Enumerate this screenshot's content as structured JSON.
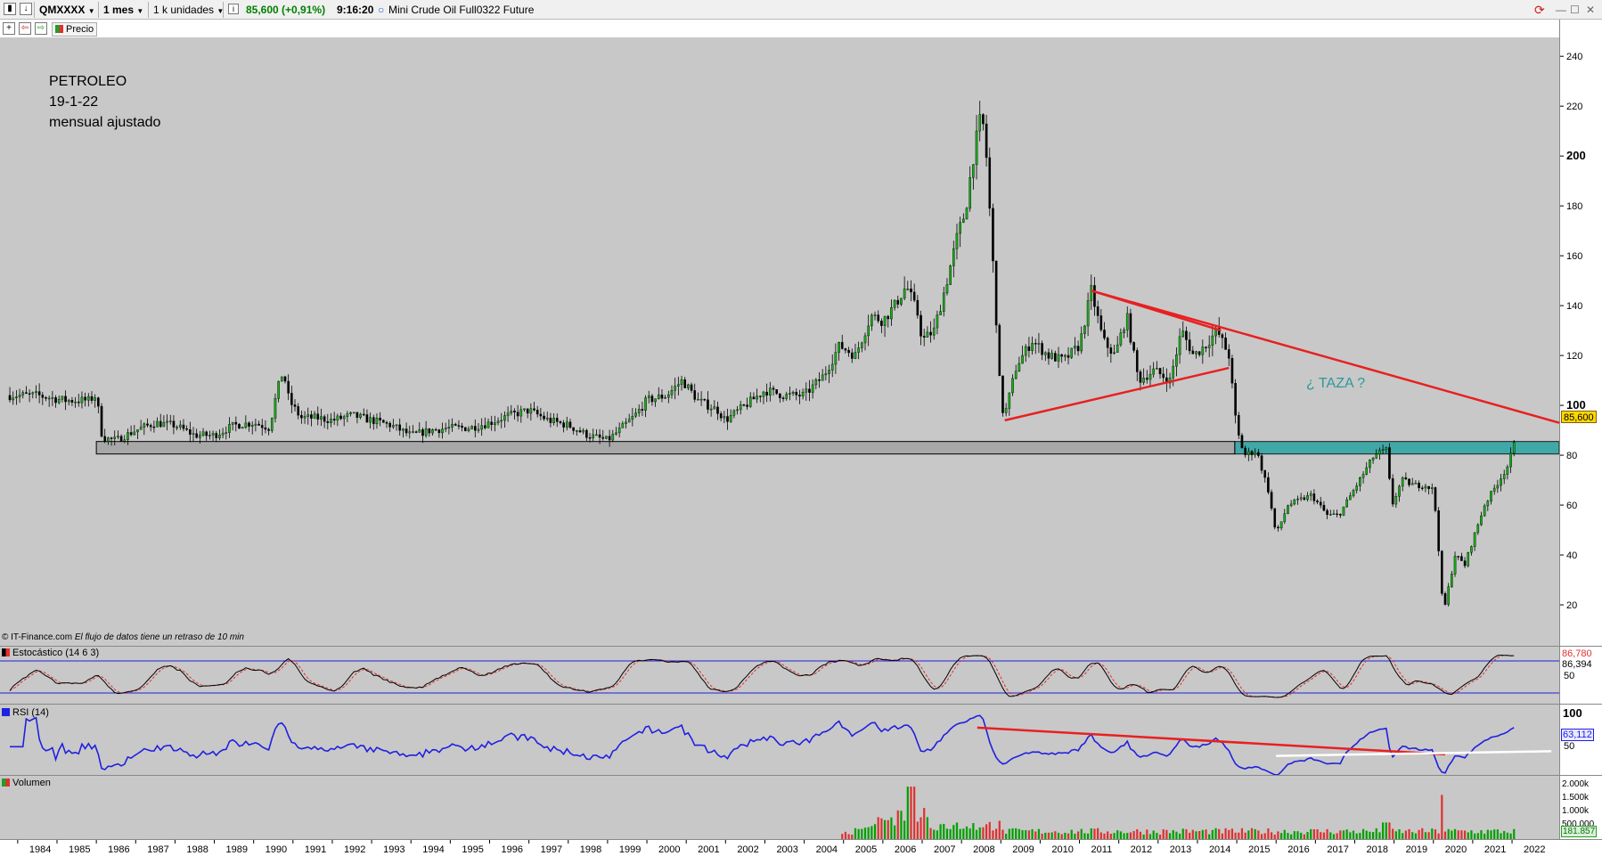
{
  "toolbar": {
    "symbol": "QMXXXX",
    "interval": "1 mes",
    "units": "1 k unidades",
    "price": "85,600 (+0,91%)",
    "time": "9:16:20",
    "instrument": "Mini Crude Oil Full0322 Future"
  },
  "subtoolbar": {
    "price_label": "Precio"
  },
  "annotations": {
    "title_line1": "PETROLEO",
    "title_line2": "19-1-22",
    "title_line3": "mensual ajustado",
    "cup_label": "¿ TAZA ?",
    "credit": "© IT-Finance.com",
    "delay_note": "El flujo de datos tiene un retraso de 10 min"
  },
  "panels": {
    "stochastic": {
      "title": "Estocástico (14 6 3)",
      "value1": "86,780",
      "value2": "86,394",
      "mid": "50"
    },
    "rsi": {
      "title": "RSI (14)",
      "value": "63,112",
      "top": "100",
      "mid": "50"
    },
    "volume": {
      "title": "Volumen",
      "ticks": [
        "2.000k",
        "1.500k",
        "1.000k",
        "500.000"
      ],
      "value": "181.857"
    }
  },
  "colors": {
    "panel_bg": "#c8c8c8",
    "trendline": "#e82020",
    "rsi_line": "#2020e0",
    "support_zone": "#2aa3a3",
    "vol_up": "#00a000",
    "vol_down": "#e03030"
  },
  "chart_data": {
    "type": "candlestick",
    "x_axis_labels": [
      "1984",
      "1985",
      "1986",
      "1987",
      "1988",
      "1989",
      "1990",
      "1991",
      "1992",
      "1993",
      "1994",
      "1995",
      "1996",
      "1997",
      "1998",
      "1999",
      "2000",
      "2001",
      "2002",
      "2003",
      "2004",
      "2005",
      "2006",
      "2007",
      "2008",
      "2009",
      "2010",
      "2011",
      "2012",
      "2013",
      "2014",
      "2015",
      "2016",
      "2017",
      "2018",
      "2019",
      "2020",
      "2021",
      "2022"
    ],
    "y_ticks": [
      20,
      40,
      60,
      80,
      100,
      120,
      140,
      160,
      180,
      200,
      220,
      240
    ],
    "y_tick_labels": [
      "20",
      "40",
      "60",
      "80",
      "100",
      "120",
      "140",
      "160",
      "180",
      "200",
      "220",
      "240"
    ],
    "ylim": [
      0,
      244
    ],
    "last_price": "85,600",
    "price_series": [
      [
        1983.8,
        104
      ],
      [
        1984.5,
        104
      ],
      [
        1985.2,
        102
      ],
      [
        1985.8,
        102
      ],
      [
        1986.0,
        104
      ],
      [
        1986.15,
        87
      ],
      [
        1986.5,
        86
      ],
      [
        1987.0,
        90
      ],
      [
        1987.5,
        93
      ],
      [
        1988.0,
        92
      ],
      [
        1988.5,
        88
      ],
      [
        1989.0,
        88
      ],
      [
        1989.5,
        92
      ],
      [
        1990.0,
        93
      ],
      [
        1990.4,
        91
      ],
      [
        1990.6,
        106
      ],
      [
        1990.75,
        114
      ],
      [
        1990.9,
        102
      ],
      [
        1991.2,
        95
      ],
      [
        1991.6,
        95
      ],
      [
        1992.0,
        94
      ],
      [
        1992.5,
        96
      ],
      [
        1993.0,
        94
      ],
      [
        1993.5,
        92
      ],
      [
        1994.0,
        88
      ],
      [
        1994.5,
        90
      ],
      [
        1995.0,
        91
      ],
      [
        1995.5,
        91
      ],
      [
        1996.0,
        93
      ],
      [
        1996.5,
        96
      ],
      [
        1997.0,
        98
      ],
      [
        1997.5,
        94
      ],
      [
        1998.0,
        92
      ],
      [
        1998.5,
        88
      ],
      [
        1999.0,
        86
      ],
      [
        1999.3,
        90
      ],
      [
        1999.7,
        96
      ],
      [
        2000.0,
        102
      ],
      [
        2000.5,
        104
      ],
      [
        2000.9,
        110
      ],
      [
        2001.3,
        102
      ],
      [
        2001.8,
        98
      ],
      [
        2002.0,
        94
      ],
      [
        2002.5,
        100
      ],
      [
        2003.0,
        106
      ],
      [
        2003.5,
        104
      ],
      [
        2004.0,
        104
      ],
      [
        2004.5,
        112
      ],
      [
        2004.9,
        124
      ],
      [
        2005.3,
        120
      ],
      [
        2005.7,
        136
      ],
      [
        2006.0,
        134
      ],
      [
        2006.3,
        140
      ],
      [
        2006.6,
        148
      ],
      [
        2006.9,
        136
      ],
      [
        2007.0,
        126
      ],
      [
        2007.3,
        130
      ],
      [
        2007.6,
        148
      ],
      [
        2007.9,
        168
      ],
      [
        2008.1,
        178
      ],
      [
        2008.3,
        200
      ],
      [
        2008.5,
        216
      ],
      [
        2008.6,
        208
      ],
      [
        2008.75,
        170
      ],
      [
        2008.9,
        130
      ],
      [
        2009.0,
        100
      ],
      [
        2009.1,
        96
      ],
      [
        2009.4,
        116
      ],
      [
        2009.8,
        126
      ],
      [
        2010.2,
        120
      ],
      [
        2010.6,
        118
      ],
      [
        2011.0,
        124
      ],
      [
        2011.3,
        146
      ],
      [
        2011.6,
        126
      ],
      [
        2011.9,
        120
      ],
      [
        2012.2,
        136
      ],
      [
        2012.5,
        110
      ],
      [
        2012.9,
        114
      ],
      [
        2013.3,
        110
      ],
      [
        2013.6,
        130
      ],
      [
        2013.9,
        120
      ],
      [
        2014.2,
        124
      ],
      [
        2014.5,
        130
      ],
      [
        2014.8,
        120
      ],
      [
        2015.0,
        90
      ],
      [
        2015.2,
        80
      ],
      [
        2015.5,
        82
      ],
      [
        2015.8,
        66
      ],
      [
        2016.0,
        48
      ],
      [
        2016.3,
        60
      ],
      [
        2016.6,
        62
      ],
      [
        2016.9,
        64
      ],
      [
        2017.3,
        56
      ],
      [
        2017.6,
        56
      ],
      [
        2017.9,
        64
      ],
      [
        2018.2,
        72
      ],
      [
        2018.5,
        80
      ],
      [
        2018.8,
        82
      ],
      [
        2018.95,
        60
      ],
      [
        2019.2,
        70
      ],
      [
        2019.5,
        68
      ],
      [
        2019.8,
        68
      ],
      [
        2020.0,
        66
      ],
      [
        2020.1,
        50
      ],
      [
        2020.25,
        16
      ],
      [
        2020.35,
        24
      ],
      [
        2020.55,
        40
      ],
      [
        2020.8,
        36
      ],
      [
        2021.0,
        46
      ],
      [
        2021.3,
        60
      ],
      [
        2021.6,
        68
      ],
      [
        2021.9,
        76
      ],
      [
        2022.05,
        84
      ],
      [
        2022.1,
        85.6
      ]
    ],
    "overlays": {
      "resistance_line": [
        [
          2011.3,
          146
        ],
        [
          2023.2,
          93
        ]
      ],
      "triangle_lower": [
        [
          2009.1,
          94
        ],
        [
          2014.8,
          115
        ]
      ],
      "triangle_upper": [
        [
          2011.3,
          146
        ],
        [
          2014.6,
          130
        ]
      ],
      "support_zone": [
        85.5,
        80.5
      ],
      "support_zone_start": 1986.0,
      "highlight_zone_start": 2014.95
    }
  }
}
